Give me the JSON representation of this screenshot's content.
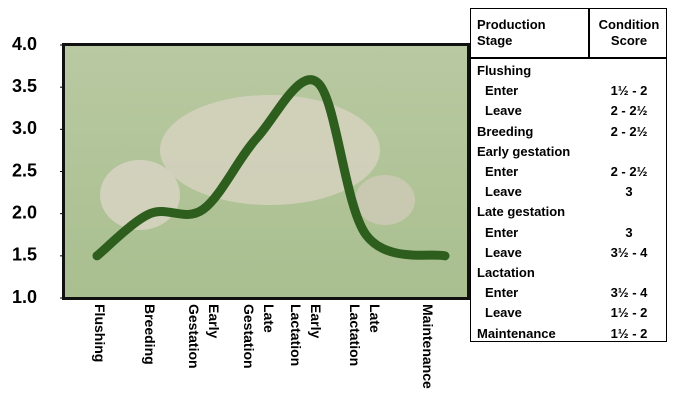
{
  "chart_data": {
    "type": "line",
    "categories": [
      "Flushing",
      "Breeding",
      "Early Gestation",
      "Late Gestation",
      "Early Lactation",
      "Late Lactation",
      "Maintenance"
    ],
    "values": [
      1.5,
      2.0,
      2.05,
      2.9,
      3.55,
      1.75,
      1.5
    ],
    "color": "#2e5e1e",
    "ylim": [
      1.0,
      4.0
    ],
    "yticks": [
      {
        "value": 1,
        "label": "1.0"
      },
      {
        "value": 1.5,
        "label": "1.5"
      },
      {
        "value": 2,
        "label": "2.0"
      },
      {
        "value": 2.5,
        "label": "2.5"
      },
      {
        "value": 3,
        "label": "3.0"
      },
      {
        "value": 3.5,
        "label": "3.5"
      },
      {
        "value": 4,
        "label": "4.0"
      }
    ]
  },
  "table": {
    "header": [
      "Production Stage",
      "Condition Score"
    ],
    "groups": [
      {
        "stage": "Flushing",
        "rows": [
          {
            "stage": "Enter",
            "score": "1½ - 2"
          },
          {
            "stage": "Leave",
            "score": "2 - 2½"
          }
        ]
      },
      {
        "stage": "Breeding",
        "score": "2 - 2½"
      },
      {
        "stage": "Early gestation",
        "rows": [
          {
            "stage": "Enter",
            "score": "2 - 2½"
          },
          {
            "stage": "Leave",
            "score": "3"
          }
        ]
      },
      {
        "stage": "Late gestation",
        "rows": [
          {
            "stage": "Enter",
            "score": "3"
          },
          {
            "stage": "Leave",
            "score": "3½ - 4"
          }
        ]
      },
      {
        "stage": "Lactation",
        "rows": [
          {
            "stage": "Enter",
            "score": "3½ - 4"
          },
          {
            "stage": "Leave",
            "score": "1½ - 2"
          }
        ]
      },
      {
        "stage": "Maintenance",
        "score": "1½ - 2"
      }
    ]
  }
}
